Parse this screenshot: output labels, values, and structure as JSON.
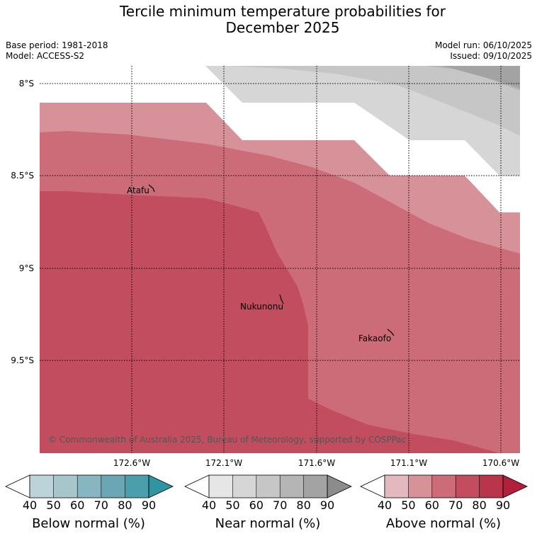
{
  "title": {
    "line1": "Tercile minimum temperature probabilities for",
    "line2": "December 2025"
  },
  "meta": {
    "base_period": "Base period: 1981-2018",
    "model": "Model: ACCESS-S2",
    "model_run": "Model run: 06/10/2025",
    "issued": "Issued: 09/10/2025"
  },
  "axes": {
    "lat_labels": [
      "8°S",
      "8.5°S",
      "9°S",
      "9.5°S"
    ],
    "lon_labels": [
      "172.6°W",
      "172.1°W",
      "171.6°W",
      "171.1°W",
      "170.6°W"
    ]
  },
  "islands": [
    "Atafu",
    "Nukunonu",
    "Fakaofo"
  ],
  "copyright": "© Commonwealth of Australia 2025, Bureau of Meteorology, supported by COSPPac",
  "colorbars": [
    {
      "title": "Below normal (%)",
      "ticks": [
        "40",
        "50",
        "60",
        "70",
        "80",
        "90"
      ],
      "colors": [
        "#bcd3d9",
        "#a6c6cc",
        "#88b6c0",
        "#6aa6b3",
        "#4b9fad",
        "#2f95a3"
      ]
    },
    {
      "title": "Near normal (%)",
      "ticks": [
        "40",
        "50",
        "60",
        "70",
        "80",
        "90"
      ],
      "colors": [
        "#e6e6e6",
        "#d6d6d6",
        "#c6c6c6",
        "#b5b5b5",
        "#a3a3a3",
        "#8c8c8c"
      ]
    },
    {
      "title": "Above normal (%)",
      "ticks": [
        "40",
        "50",
        "60",
        "70",
        "80",
        "90"
      ],
      "colors": [
        "#e3b8bf",
        "#d69199",
        "#cc6c78",
        "#c24d5e",
        "#b8354a",
        "#b21f3b"
      ]
    }
  ]
}
